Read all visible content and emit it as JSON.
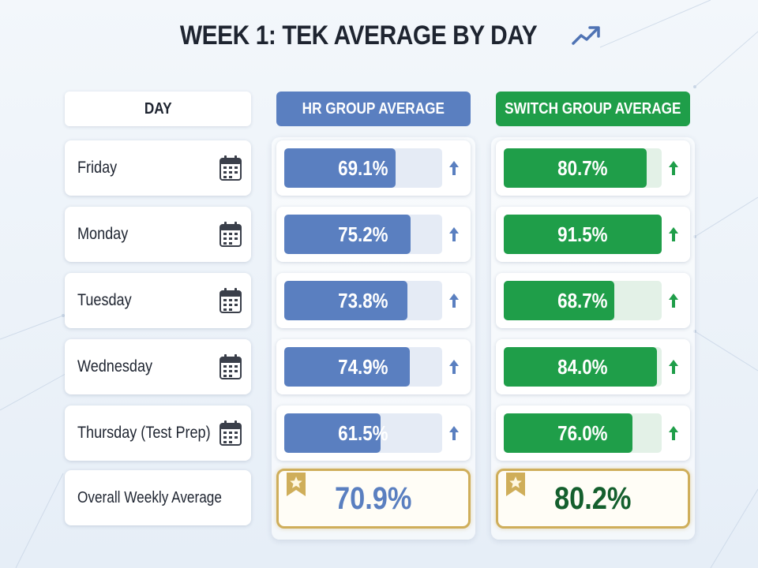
{
  "title": "WEEK 1: TEK AVERAGE BY DAY",
  "headers": {
    "day": "DAY",
    "hr": "HR GROUP AVERAGE",
    "switch": "SWITCH GROUP AVERAGE"
  },
  "days": [
    {
      "label": "Friday",
      "hr_display": "69.1%",
      "switch_display": "80.7%"
    },
    {
      "label": "Monday",
      "hr_display": "75.2%",
      "switch_display": "91.5%"
    },
    {
      "label": "Tuesday",
      "hr_display": "73.8%",
      "switch_display": "68.7%"
    },
    {
      "label": "Wednesday",
      "hr_display": "74.9%",
      "switch_display": "84.0%"
    },
    {
      "label": "Thursday (Test Prep)",
      "hr_display": "61.5%",
      "switch_display": "76.0%"
    }
  ],
  "overall": {
    "label": "Overall Weekly Average",
    "hr_display": "70.9%",
    "switch_display": "80.2%"
  },
  "colors": {
    "hr": "#5a7fc0",
    "switch": "#1f9e49",
    "gold": "#cfae5a"
  },
  "icons": {
    "title": "trend-up-icon",
    "day": "calendar-icon",
    "change": "arrow-up-icon",
    "overall": "star-badge-icon"
  },
  "chart_data": {
    "type": "bar",
    "title": "WEEK 1: TEK AVERAGE BY DAY",
    "categories": [
      "Friday",
      "Monday",
      "Tuesday",
      "Wednesday",
      "Thursday (Test Prep)"
    ],
    "series": [
      {
        "name": "HR GROUP AVERAGE",
        "values": [
          69.1,
          75.2,
          73.8,
          74.9,
          61.5
        ],
        "overall": 70.9
      },
      {
        "name": "SWITCH GROUP AVERAGE",
        "values": [
          80.7,
          91.5,
          68.7,
          84.0,
          76.0
        ],
        "overall": 80.2
      }
    ],
    "unit": "%",
    "ylim": [
      0,
      100
    ],
    "orientation": "horizontal",
    "legend": "column headers"
  }
}
